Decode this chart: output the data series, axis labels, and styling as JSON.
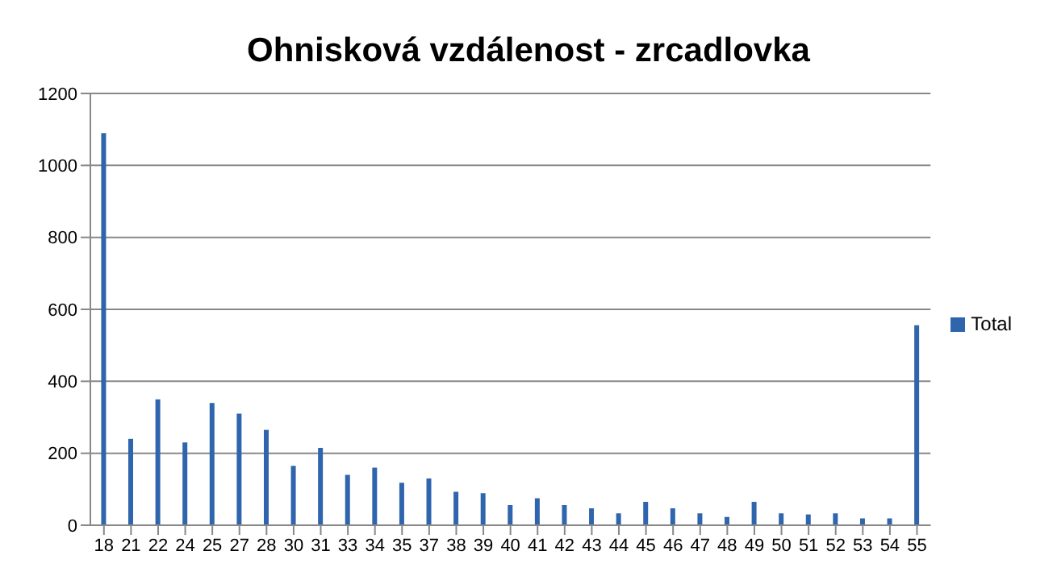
{
  "chart_data": {
    "type": "bar",
    "title": "Ohnisková vzdálenost - zrcadlovka",
    "categories": [
      "18",
      "21",
      "22",
      "24",
      "25",
      "27",
      "28",
      "30",
      "31",
      "33",
      "34",
      "35",
      "37",
      "38",
      "39",
      "40",
      "41",
      "42",
      "43",
      "44",
      "45",
      "46",
      "47",
      "48",
      "49",
      "50",
      "51",
      "52",
      "53",
      "54",
      "55"
    ],
    "series": [
      {
        "name": "Total",
        "color": "#2f65ad",
        "values": [
          1090,
          240,
          350,
          230,
          340,
          310,
          265,
          165,
          215,
          140,
          160,
          118,
          130,
          93,
          89,
          56,
          75,
          56,
          47,
          33,
          65,
          47,
          33,
          23,
          65,
          33,
          30,
          33,
          19,
          19,
          556
        ]
      }
    ],
    "ylim": [
      0,
      1200
    ],
    "yticks": [
      0,
      200,
      400,
      600,
      800,
      1000,
      1200
    ],
    "grid": "y",
    "legend": "right"
  }
}
